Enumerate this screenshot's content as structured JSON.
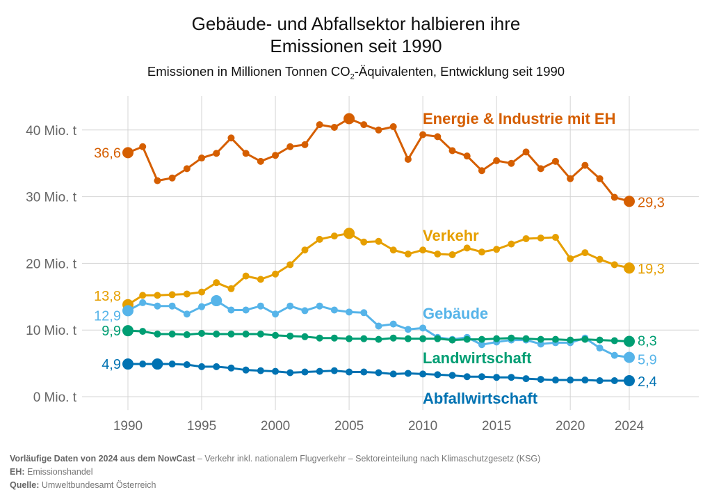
{
  "title_line1": "Gebäude- und Abfallsektor halbieren ihre",
  "title_line2": "Emissionen seit 1990",
  "subtitle_pre": "Emissionen in Millionen Tonnen CO",
  "subtitle_sub": "2",
  "subtitle_post": "-Äquivalenten, Entwicklung seit 1990",
  "footer": {
    "line1_bold": "Vorläufige Daten von 2024 aus dem NowCast",
    "line1_rest": " – Verkehr inkl. nationalem Flugverkehr – Sektoreinteilung nach Klimaschutzgesetz (KSG)",
    "line2_bold": "EH:",
    "line2_rest": " Emissionshandel",
    "line3_bold": "Quelle:",
    "line3_rest": " Umweltbundesamt Österreich"
  },
  "chart_data": {
    "type": "line",
    "title": "Gebäude- und Abfallsektor halbieren ihre Emissionen seit 1990",
    "xlabel": "",
    "ylabel": "",
    "xlim": [
      1987,
      2028
    ],
    "ylim": [
      -2,
      45
    ],
    "grid": true,
    "x_ticks": [
      1990,
      1995,
      2000,
      2005,
      2010,
      2015,
      2020,
      2024
    ],
    "y_ticks": [
      0,
      10,
      20,
      30,
      40
    ],
    "y_tick_labels": [
      "0 Mio. t",
      "10 Mio. t",
      "20 Mio. t",
      "30 Mio. t",
      "40 Mio. t"
    ],
    "x": [
      1990,
      1991,
      1992,
      1993,
      1994,
      1995,
      1996,
      1997,
      1998,
      1999,
      2000,
      2001,
      2002,
      2003,
      2004,
      2005,
      2006,
      2007,
      2008,
      2009,
      2010,
      2011,
      2012,
      2013,
      2014,
      2015,
      2016,
      2017,
      2018,
      2019,
      2020,
      2021,
      2022,
      2023,
      2024
    ],
    "series": [
      {
        "name": "Energie & Industrie mit EH",
        "color": "#D55E00",
        "start_label": "36,6",
        "end_label": "29,3",
        "highlight_year": 2005,
        "values": [
          36.6,
          37.5,
          32.4,
          32.8,
          34.2,
          35.8,
          36.5,
          38.8,
          36.5,
          35.3,
          36.2,
          37.5,
          37.8,
          40.8,
          40.4,
          41.7,
          40.8,
          40.0,
          40.5,
          35.6,
          39.3,
          39.0,
          36.9,
          36.1,
          33.9,
          35.4,
          35.0,
          36.7,
          34.2,
          35.3,
          32.7,
          34.7,
          32.7,
          29.9,
          29.3
        ]
      },
      {
        "name": "Verkehr",
        "color": "#E69F00",
        "start_label": "13,8",
        "end_label": "19,3",
        "highlight_year": 2005,
        "values": [
          13.8,
          15.2,
          15.2,
          15.3,
          15.4,
          15.7,
          17.1,
          16.2,
          18.1,
          17.6,
          18.4,
          19.8,
          22.0,
          23.6,
          24.1,
          24.5,
          23.2,
          23.3,
          22.0,
          21.4,
          22.0,
          21.4,
          21.3,
          22.3,
          21.7,
          22.1,
          22.9,
          23.7,
          23.8,
          23.9,
          20.7,
          21.6,
          20.6,
          19.8,
          19.3
        ]
      },
      {
        "name": "Gebäude",
        "color": "#56B4E9",
        "start_label": "12,9",
        "end_label": "5,9",
        "highlight_year": 1996,
        "values": [
          12.9,
          14.1,
          13.6,
          13.6,
          12.4,
          13.5,
          14.4,
          13.0,
          13.0,
          13.6,
          12.4,
          13.6,
          12.9,
          13.6,
          13.0,
          12.7,
          12.6,
          10.6,
          10.9,
          10.1,
          10.3,
          8.9,
          8.6,
          8.9,
          7.8,
          8.2,
          8.5,
          8.5,
          7.9,
          8.1,
          8.1,
          8.8,
          7.3,
          6.2,
          5.9
        ]
      },
      {
        "name": "Landwirtschaft",
        "color": "#009E73",
        "start_label": "9,9",
        "end_label": "8,3",
        "highlight_year": 1990,
        "values": [
          9.9,
          9.8,
          9.4,
          9.4,
          9.3,
          9.5,
          9.4,
          9.4,
          9.4,
          9.4,
          9.2,
          9.1,
          9.0,
          8.8,
          8.8,
          8.7,
          8.7,
          8.6,
          8.8,
          8.7,
          8.7,
          8.7,
          8.5,
          8.6,
          8.6,
          8.7,
          8.8,
          8.7,
          8.6,
          8.6,
          8.5,
          8.6,
          8.5,
          8.4,
          8.3
        ]
      },
      {
        "name": "Abfallwirtschaft",
        "color": "#0072B2",
        "start_label": "4,9",
        "end_label": "2,4",
        "highlight_year": 1992,
        "values": [
          4.9,
          4.9,
          4.9,
          4.9,
          4.8,
          4.5,
          4.5,
          4.3,
          4.0,
          3.9,
          3.8,
          3.6,
          3.7,
          3.8,
          3.9,
          3.7,
          3.7,
          3.6,
          3.4,
          3.5,
          3.4,
          3.3,
          3.2,
          3.0,
          3.0,
          2.9,
          2.9,
          2.7,
          2.6,
          2.5,
          2.5,
          2.5,
          2.4,
          2.4,
          2.4
        ]
      }
    ],
    "series_label_positions": [
      "top-center",
      "upper-center",
      "middle-center",
      "lower-center",
      "bottom-center"
    ]
  }
}
